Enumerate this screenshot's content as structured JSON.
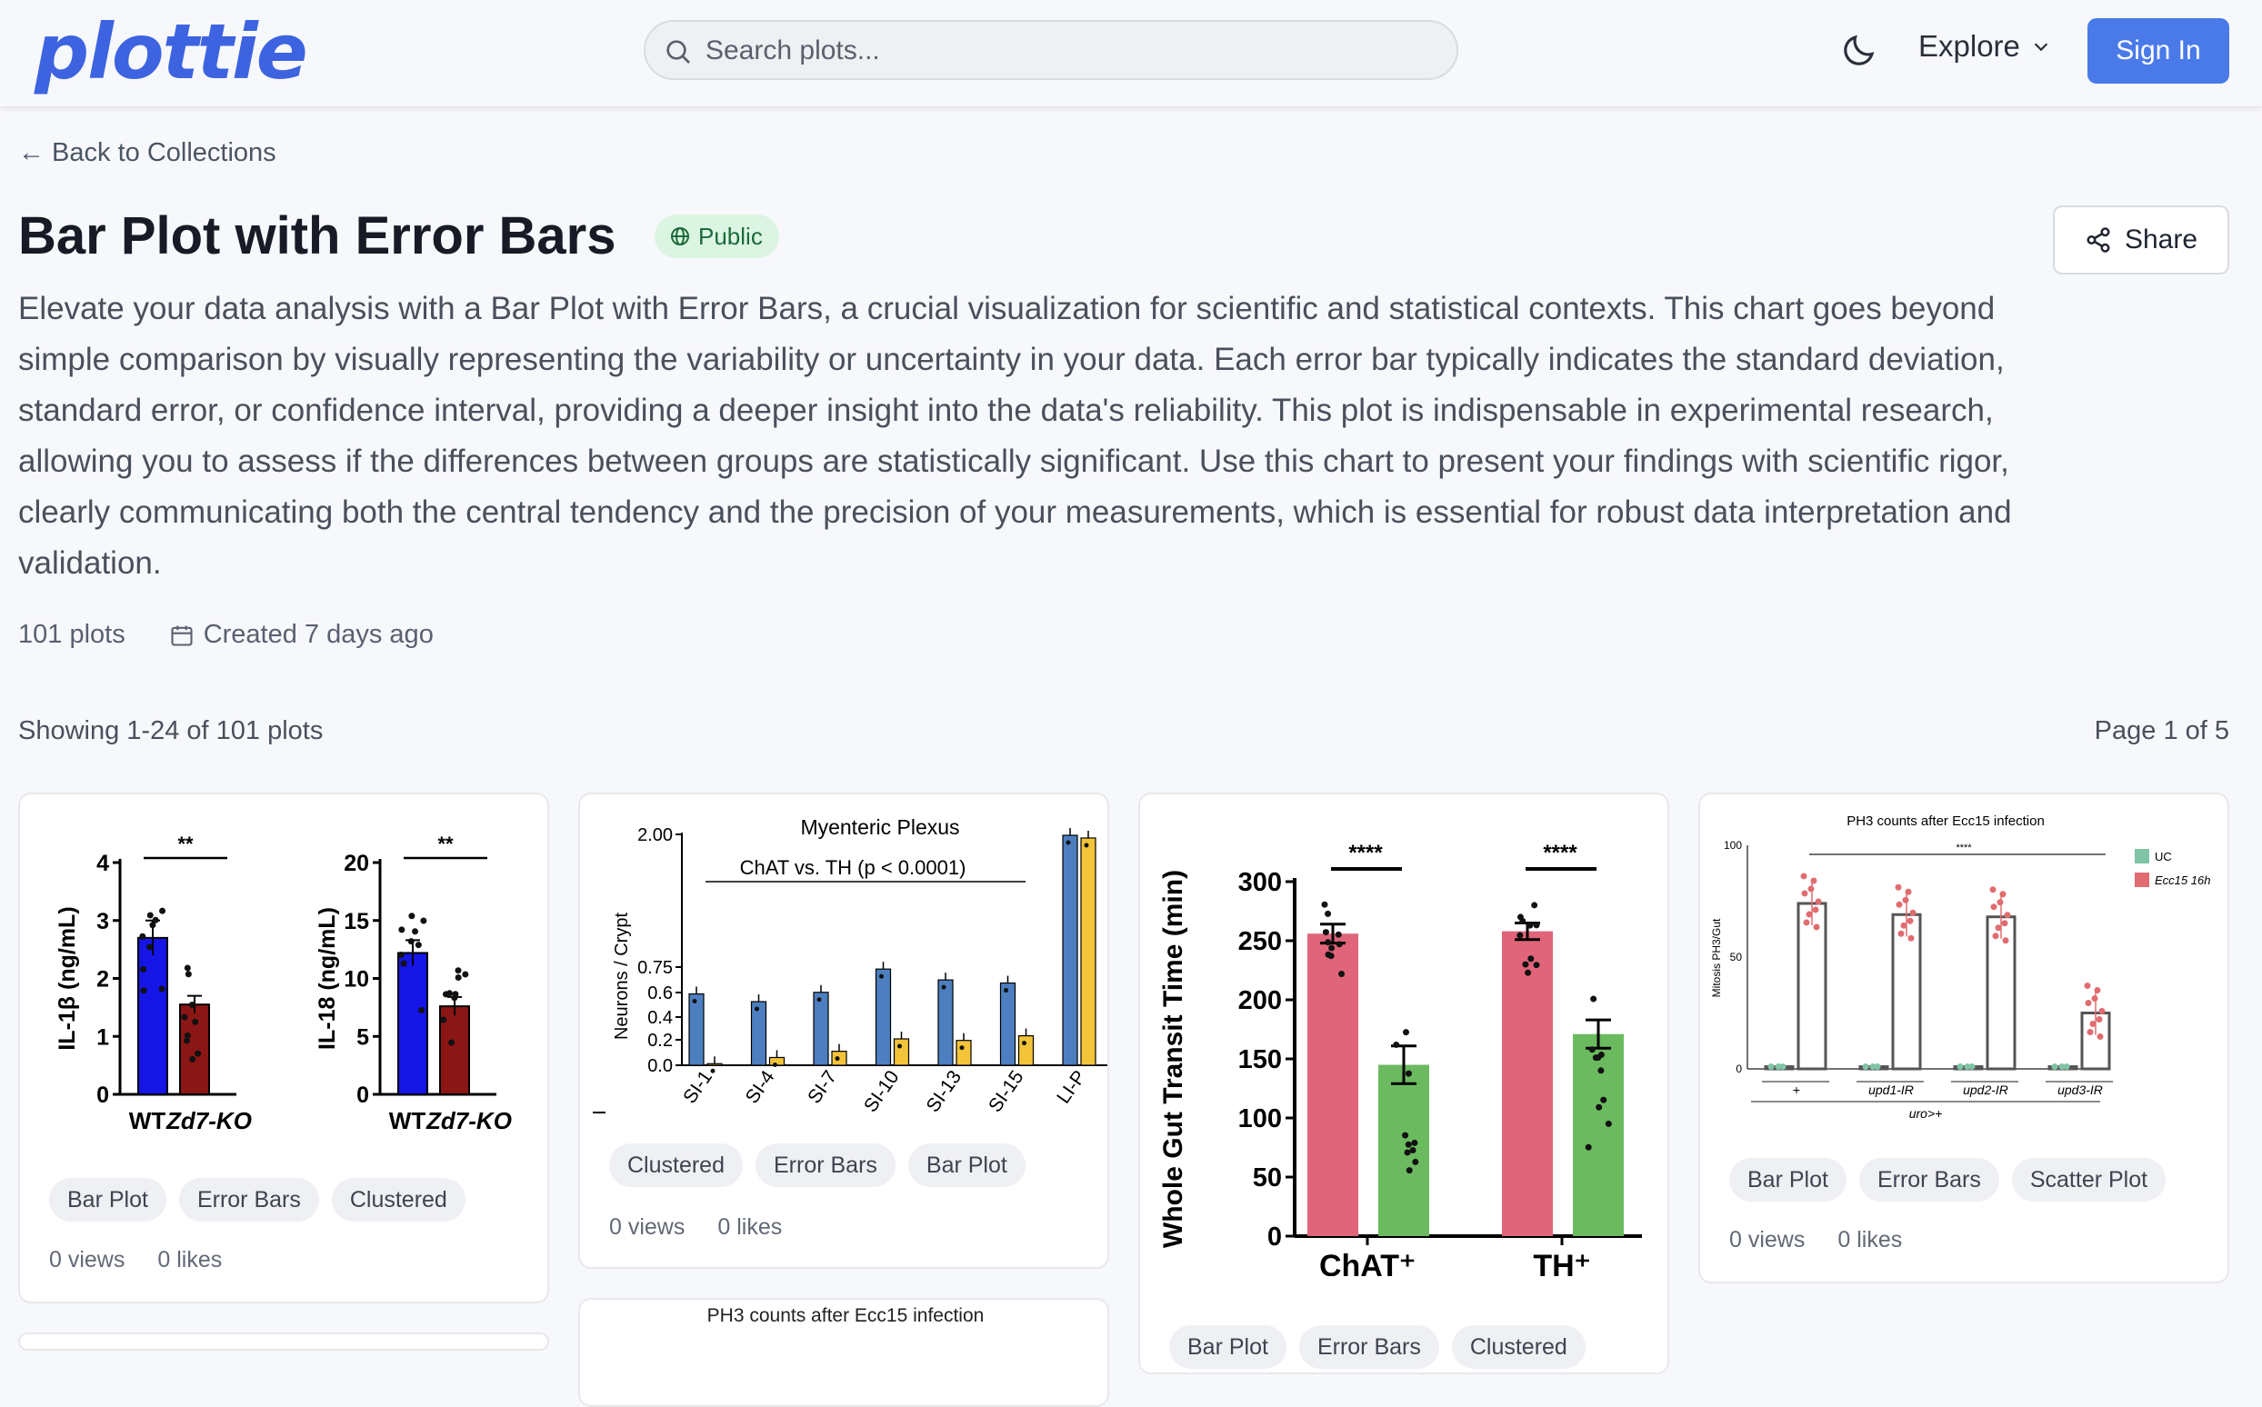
{
  "header": {
    "logo": "plottie",
    "search_placeholder": "Search plots...",
    "explore_label": "Explore",
    "signin_label": "Sign In"
  },
  "nav": {
    "back_label": "← Back to Collections"
  },
  "collection": {
    "title": "Bar Plot with Error Bars",
    "visibility": "Public",
    "share_label": "Share",
    "description": "Elevate your data analysis with a Bar Plot with Error Bars, a crucial visualization for scientific and statistical contexts. This chart goes beyond simple comparison by visually representing the variability or uncertainty in your data. Each error bar typically indicates the standard deviation, standard error, or confidence interval, providing a deeper insight into the data's reliability. This plot is indispensable in experimental research, allowing you to assess if the differences between groups are statistically significant. Use this chart to present your findings with scientific rigor, clearly communicating both the central tendency and the precision of your measurements, which is essential for robust data interpretation and validation.",
    "plot_count": "101 plots",
    "created": "Created 7 days ago"
  },
  "listing": {
    "showing": "Showing 1-24 of 101 plots",
    "page": "Page 1 of 5"
  },
  "cards": [
    {
      "tags": [
        "Bar Plot",
        "Error Bars",
        "Clustered"
      ],
      "views": "0 views",
      "likes": "0 likes"
    },
    {
      "tags": [
        "Clustered",
        "Error Bars",
        "Bar Plot"
      ],
      "views": "0 views",
      "likes": "0 likes"
    },
    {
      "tags": [
        "Bar Plot",
        "Error Bars",
        "Clustered"
      ],
      "views": "0 views",
      "likes": "0 likes"
    },
    {
      "tags": [
        "Bar Plot",
        "Error Bars",
        "Scatter Plot"
      ],
      "views": "0 views",
      "likes": "0 likes"
    }
  ],
  "partial_card_title": "PH3 counts after Ecc15 infection",
  "chart_data": [
    {
      "type": "bar",
      "panels": [
        {
          "ylabel": "IL-1β (ng/mL)",
          "categories": [
            "WT",
            "Zd7-KO"
          ],
          "values": [
            2.7,
            1.55
          ],
          "errors": [
            0.3,
            0.15
          ],
          "ylim": [
            0,
            4
          ],
          "yticks": [
            "0",
            "1",
            "2",
            "3",
            "4"
          ],
          "significance": "**"
        },
        {
          "ylabel": "IL-18 (ng/mL)",
          "categories": [
            "WT",
            "Zd7-KO"
          ],
          "values": [
            12.2,
            7.6
          ],
          "errors": [
            1.1,
            0.8
          ],
          "ylim": [
            0,
            20
          ],
          "yticks": [
            "0",
            "5",
            "10",
            "15",
            "20"
          ],
          "significance": "**"
        }
      ],
      "colors": [
        "#1515e6",
        "#8b1616"
      ]
    },
    {
      "type": "bar",
      "title": "Myenteric Plexus",
      "annotation": "ChAT vs. TH (p < 0.0001)",
      "ylabel": "Neurons / Crypt",
      "categories": [
        "SI-1",
        "SI-4",
        "SI-7",
        "SI-10",
        "SI-13",
        "SI-15",
        "LI-P"
      ],
      "yticks": [
        "0.0",
        "0.2",
        "0.4",
        "0.6",
        "0.75",
        "2.00"
      ],
      "series": [
        {
          "values": [
            0.46,
            0.41,
            0.47,
            0.62,
            0.55,
            0.53,
            1.95
          ],
          "color": "#4d7fc0"
        },
        {
          "values": [
            0.01,
            0.05,
            0.09,
            0.17,
            0.16,
            0.19,
            1.8
          ],
          "color": "#f3c33a"
        }
      ]
    },
    {
      "type": "bar",
      "ylabel": "Whole Gut Transit Time (min)",
      "categories": [
        "ChAT",
        "TH"
      ],
      "yticks": [
        "0",
        "50",
        "100",
        "150",
        "200",
        "250",
        "300"
      ],
      "ylim": [
        0,
        300
      ],
      "groups": [
        {
          "values": [
            256,
            145
          ],
          "errors": [
            8,
            16
          ]
        },
        {
          "values": [
            258,
            171
          ],
          "errors": [
            7,
            12
          ]
        }
      ],
      "colors": [
        "#e0657a",
        "#6cba60"
      ],
      "significance": "****"
    },
    {
      "type": "bar",
      "title": "PH3 counts after Ecc15 infection",
      "ylabel": "Mitosis PH3/Gut",
      "yticks": [
        "0",
        "50",
        "100"
      ],
      "ylim": [
        0,
        100
      ],
      "categories": [
        "+",
        "upd1-IR",
        "upd2-IR",
        "upd3-IR"
      ],
      "xlabel": "uro>+",
      "legend": [
        "UC",
        "Ecc15 16h"
      ],
      "series": [
        {
          "name": "UC",
          "values": [
            1,
            1,
            1,
            1
          ],
          "color": "#7fc4a4"
        },
        {
          "name": "Ecc15 16h",
          "values": [
            74,
            69,
            68,
            25
          ],
          "color": "#e06c70"
        }
      ],
      "significance": "****"
    }
  ]
}
